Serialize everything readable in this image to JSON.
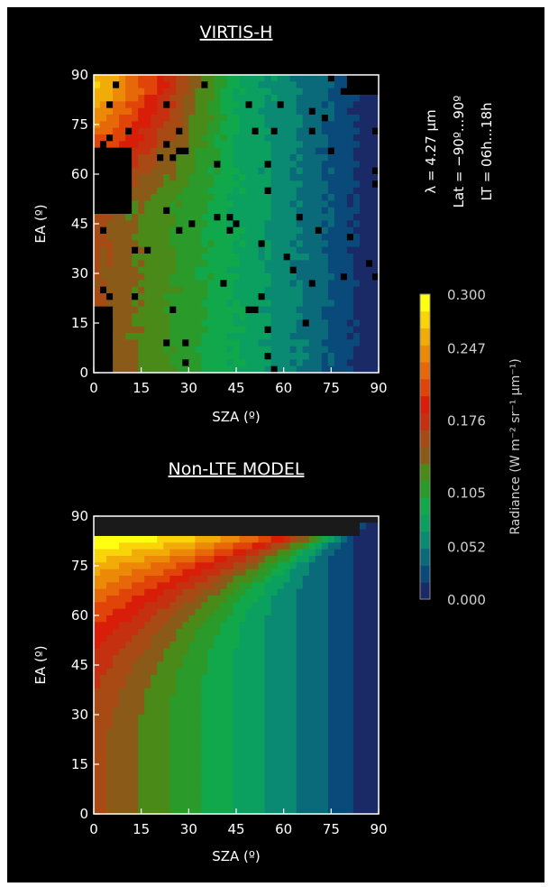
{
  "chart_data": [
    {
      "type": "heatmap",
      "title": "VIRTIS-H",
      "xlabel": "SZA (º)",
      "ylabel": "EA (º)",
      "xticks": [
        "0",
        "15",
        "30",
        "45",
        "60",
        "75",
        "90"
      ],
      "yticks": [
        "0",
        "15",
        "30",
        "45",
        "60",
        "75",
        "90"
      ],
      "xlim": [
        0,
        90
      ],
      "ylim": [
        0,
        90
      ],
      "values": "observed radiance map (W m-2 sr-1 µm-1); ~0.26 near SZA 0-20 EA 80-90, ~0.15 brown band at low SZA, decreasing smoothly to ~0.02 at SZA 85-90; scattered missing (black) pixels"
    },
    {
      "type": "heatmap",
      "title": "Non-LTE MODEL",
      "xlabel": "SZA (º)",
      "ylabel": "EA (º)",
      "xticks": [
        "0",
        "15",
        "30",
        "45",
        "60",
        "75",
        "90"
      ],
      "yticks": [
        "0",
        "15",
        "30",
        "45",
        "60",
        "75",
        "90"
      ],
      "xlim": [
        0,
        90
      ],
      "ylim": [
        0,
        90
      ],
      "values": "modelled radiance map; maximum ~0.30 at EA ~80 for SZA 0-60, converging to SZA ~88 EA ~87, decreasing toward ~0.02 at SZA 85-90; no data above EA ~87"
    }
  ],
  "annotations": {
    "wavelength": "λ = 4.27 µm",
    "latitude": "Lat = −90º...90º",
    "local_time": "LT = 06h...18h"
  },
  "colorbar": {
    "label": "Radiance (W m⁻² sr⁻¹ µm⁻¹)",
    "ticks": [
      "0.300",
      "0.247",
      "0.176",
      "0.105",
      "0.052",
      "0.000"
    ],
    "tick_values": [
      0.3,
      0.247,
      0.176,
      0.105,
      0.052,
      0.0
    ],
    "range": [
      0.0,
      0.3
    ],
    "colors": [
      "#1a2a66",
      "#0a4a7a",
      "#0a6a7a",
      "#0a8a72",
      "#0ba060",
      "#10a84a",
      "#2a9a2a",
      "#4a8a18",
      "#8a5a18",
      "#a84a14",
      "#c43010",
      "#d81e08",
      "#e04408",
      "#e66808",
      "#ec8a08",
      "#f2ac08",
      "#f8d408",
      "#ffff10"
    ]
  }
}
